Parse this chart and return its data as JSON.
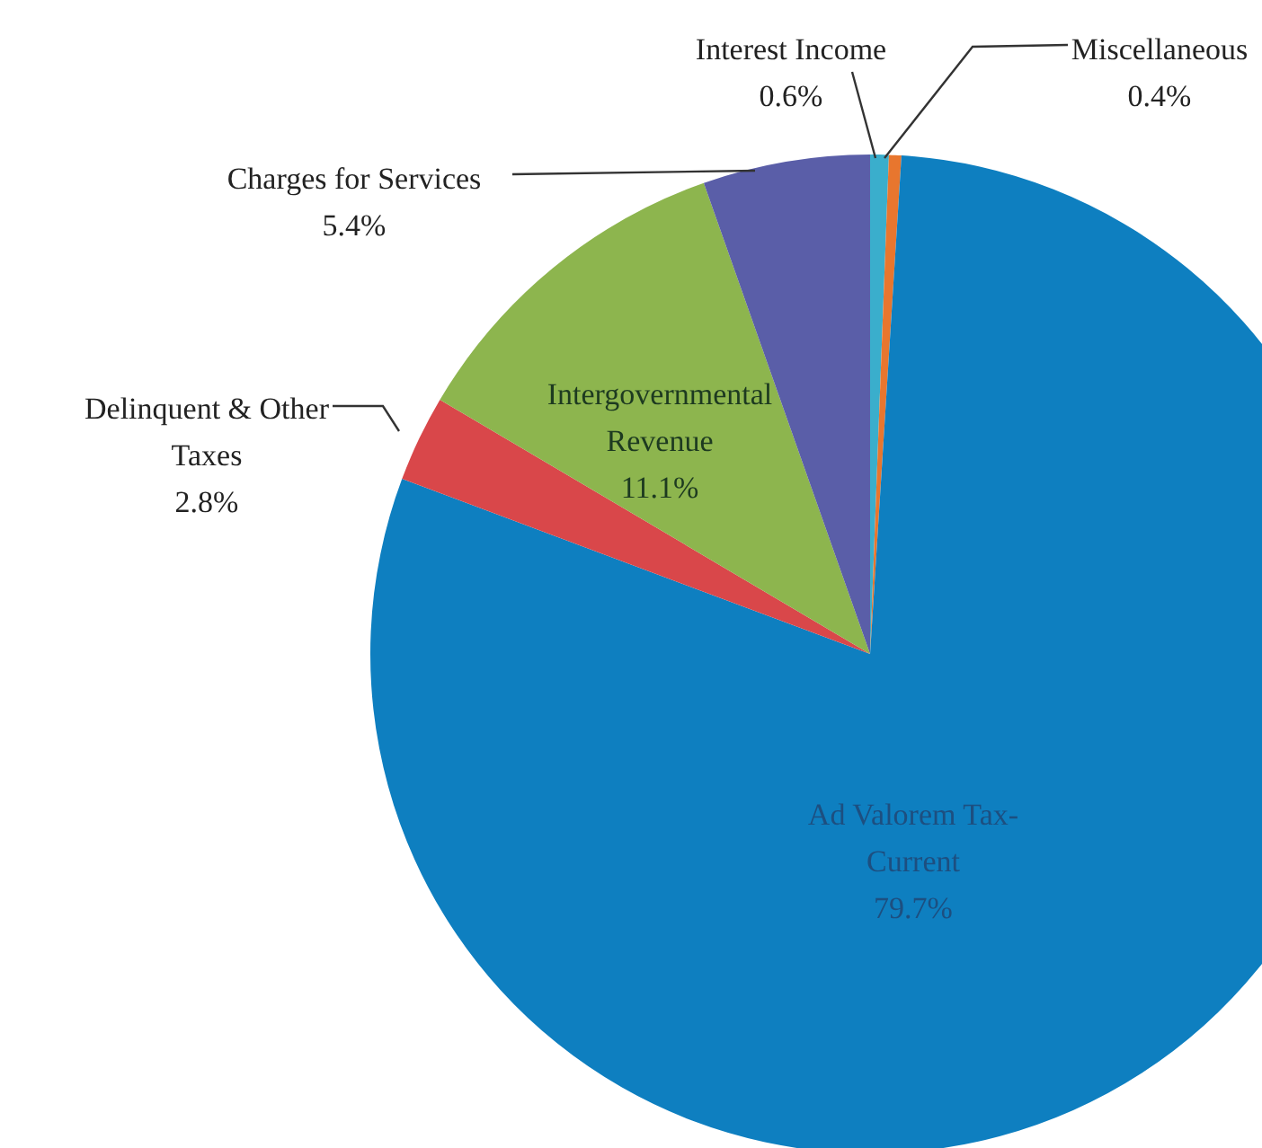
{
  "chart_data": {
    "type": "pie",
    "categories": [
      "Interest Income",
      "Miscellaneous",
      "Ad Valorem Tax-Current",
      "Delinquent & Other Taxes",
      "Intergovernmental Revenue",
      "Charges for Services"
    ],
    "values": [
      0.6,
      0.4,
      79.7,
      2.8,
      11.1,
      5.4
    ],
    "colors": [
      "#3aaecc",
      "#e8762e",
      "#0e7fc0",
      "#d9474a",
      "#8db54e",
      "#5a5ea8"
    ],
    "value_labels": [
      "0.6%",
      "0.4%",
      "79.7%",
      "2.8%",
      "11.1%",
      "5.4%"
    ],
    "legend": false
  }
}
